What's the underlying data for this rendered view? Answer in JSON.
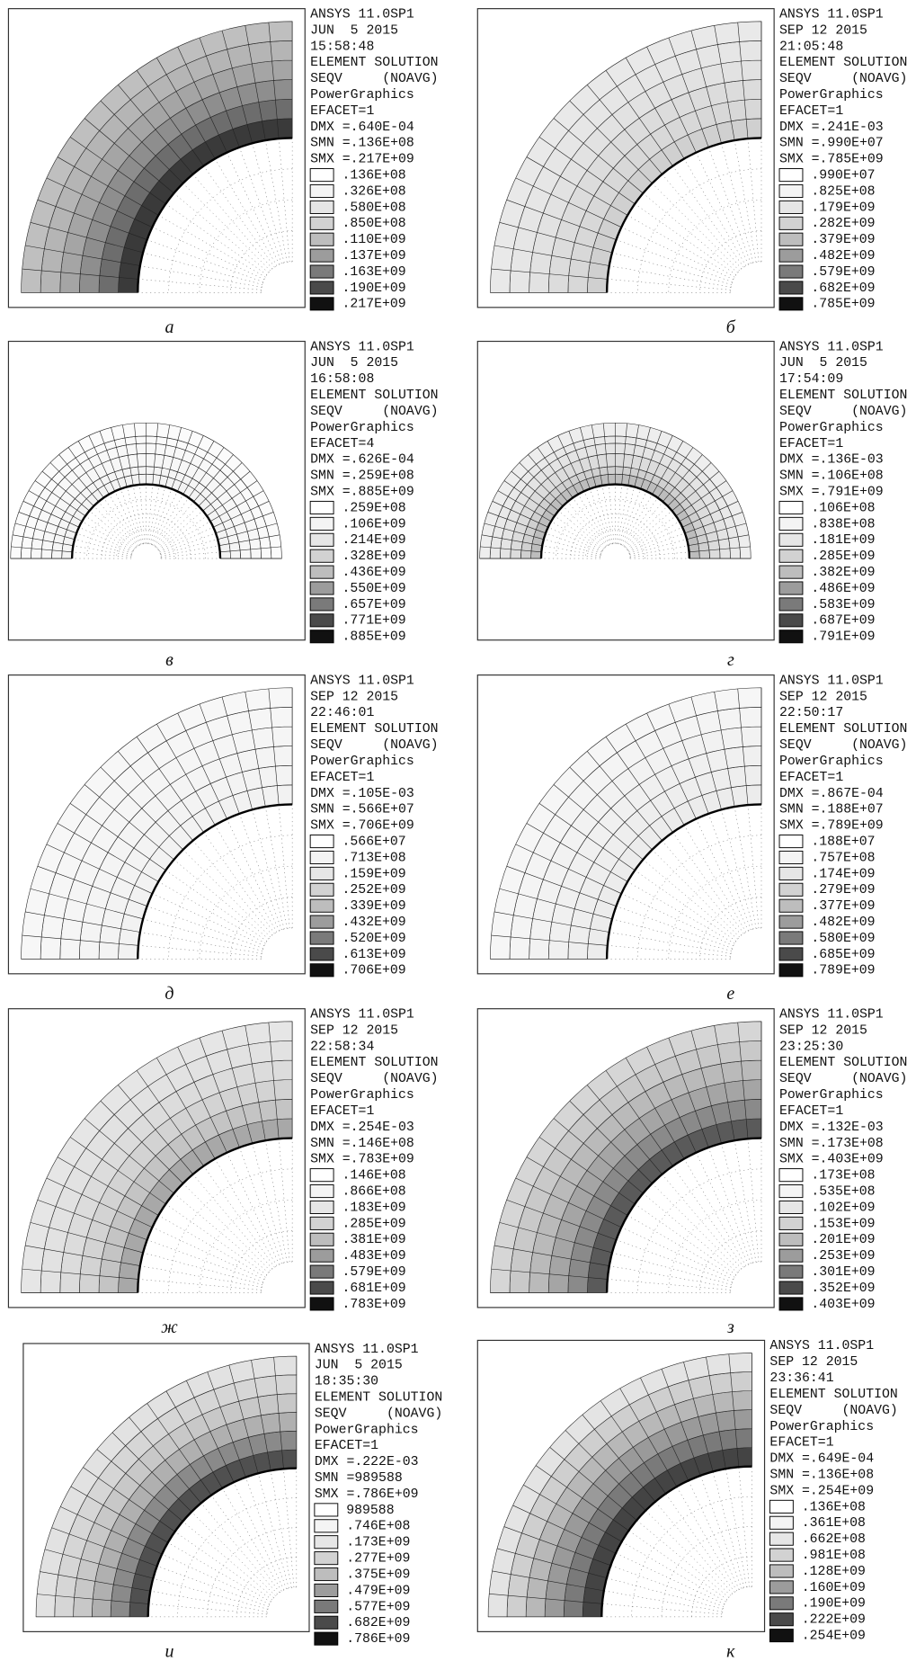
{
  "panels": [
    {
      "caption": "а",
      "lines": [
        "ANSYS 11.0SP1",
        "JUN  5 2015",
        "15:58:48",
        "ELEMENT SOLUTION",
        "SEQV     (NOAVG)",
        "PowerGraphics",
        "EFACET=1",
        "DMX =.640E-04",
        "SMN =.136E+08",
        "SMX =.217E+09"
      ],
      "legend": [
        ".136E+08",
        ".326E+08",
        ".580E+08",
        ".850E+08",
        ".110E+09",
        ".137E+09",
        ".163E+09",
        ".190E+09",
        ".217E+09"
      ]
    },
    {
      "caption": "б",
      "lines": [
        "ANSYS 11.0SP1",
        "SEP 12 2015",
        "21:05:48",
        "ELEMENT SOLUTION",
        "SEQV     (NOAVG)",
        "PowerGraphics",
        "EFACET=1",
        "DMX =.241E-03",
        "SMN =.990E+07",
        "SMX =.785E+09"
      ],
      "legend": [
        ".990E+07",
        ".825E+08",
        ".179E+09",
        ".282E+09",
        ".379E+09",
        ".482E+09",
        ".579E+09",
        ".682E+09",
        ".785E+09"
      ]
    },
    {
      "caption": "в",
      "lines": [
        "ANSYS 11.0SP1",
        "JUN  5 2015",
        "16:58:08",
        "ELEMENT SOLUTION",
        "SEQV     (NOAVG)",
        "PowerGraphics",
        "EFACET=4",
        "DMX =.626E-04",
        "SMN =.259E+08",
        "SMX =.885E+09"
      ],
      "legend": [
        ".259E+08",
        ".106E+09",
        ".214E+09",
        ".328E+09",
        ".436E+09",
        ".550E+09",
        ".657E+09",
        ".771E+09",
        ".885E+09"
      ]
    },
    {
      "caption": "г",
      "lines": [
        "ANSYS 11.0SP1",
        "JUN  5 2015",
        "17:54:09",
        "ELEMENT SOLUTION",
        "SEQV     (NOAVG)",
        "PowerGraphics",
        "EFACET=1",
        "DMX =.136E-03",
        "SMN =.106E+08",
        "SMX =.791E+09"
      ],
      "legend": [
        ".106E+08",
        ".838E+08",
        ".181E+09",
        ".285E+09",
        ".382E+09",
        ".486E+09",
        ".583E+09",
        ".687E+09",
        ".791E+09"
      ]
    },
    {
      "caption": "д",
      "lines": [
        "ANSYS 11.0SP1",
        "SEP 12 2015",
        "22:46:01",
        "ELEMENT SOLUTION",
        "SEQV     (NOAVG)",
        "PowerGraphics",
        "EFACET=1",
        "DMX =.105E-03",
        "SMN =.566E+07",
        "SMX =.706E+09"
      ],
      "legend": [
        ".566E+07",
        ".713E+08",
        ".159E+09",
        ".252E+09",
        ".339E+09",
        ".432E+09",
        ".520E+09",
        ".613E+09",
        ".706E+09"
      ]
    },
    {
      "caption": "е",
      "lines": [
        "ANSYS 11.0SP1",
        "SEP 12 2015",
        "22:50:17",
        "ELEMENT SOLUTION",
        "SEQV     (NOAVG)",
        "PowerGraphics",
        "EFACET=1",
        "DMX =.867E-04",
        "SMN =.188E+07",
        "SMX =.789E+09"
      ],
      "legend": [
        ".188E+07",
        ".757E+08",
        ".174E+09",
        ".279E+09",
        ".377E+09",
        ".482E+09",
        ".580E+09",
        ".685E+09",
        ".789E+09"
      ]
    },
    {
      "caption": "ж",
      "lines": [
        "ANSYS 11.0SP1",
        "SEP 12 2015",
        "22:58:34",
        "ELEMENT SOLUTION",
        "SEQV     (NOAVG)",
        "PowerGraphics",
        "EFACET=1",
        "DMX =.254E-03",
        "SMN =.146E+08",
        "SMX =.783E+09"
      ],
      "legend": [
        ".146E+08",
        ".866E+08",
        ".183E+09",
        ".285E+09",
        ".381E+09",
        ".483E+09",
        ".579E+09",
        ".681E+09",
        ".783E+09"
      ]
    },
    {
      "caption": "з",
      "lines": [
        "ANSYS 11.0SP1",
        "SEP 12 2015",
        "23:25:30",
        "ELEMENT SOLUTION",
        "SEQV     (NOAVG)",
        "PowerGraphics",
        "EFACET=1",
        "DMX =.132E-03",
        "SMN =.173E+08",
        "SMX =.403E+09"
      ],
      "legend": [
        ".173E+08",
        ".535E+08",
        ".102E+09",
        ".153E+09",
        ".201E+09",
        ".253E+09",
        ".301E+09",
        ".352E+09",
        ".403E+09"
      ]
    },
    {
      "caption": "и",
      "lines": [
        "ANSYS 11.0SP1",
        "JUN  5 2015",
        "18:35:30",
        "ELEMENT SOLUTION",
        "SEQV     (NOAVG)",
        "PowerGraphics",
        "EFACET=1",
        "DMX =.222E-03",
        "SMN =989588",
        "SMX =.786E+09"
      ],
      "legend": [
        "989588",
        ".746E+08",
        ".173E+09",
        ".277E+09",
        ".375E+09",
        ".479E+09",
        ".577E+09",
        ".682E+09",
        ".786E+09"
      ]
    },
    {
      "caption": "к",
      "lines": [
        "ANSYS 11.0SP1",
        "SEP 12 2015",
        "23:36:41",
        "ELEMENT SOLUTION",
        "SEQV     (NOAVG)",
        "PowerGraphics",
        "EFACET=1",
        "DMX =.649E-04",
        "SMN =.136E+08",
        "SMX =.254E+09"
      ],
      "legend": [
        ".136E+08",
        ".361E+08",
        ".662E+08",
        ".981E+08",
        ".128E+09",
        ".160E+09",
        ".190E+09",
        ".222E+09",
        ".254E+09"
      ]
    }
  ]
}
